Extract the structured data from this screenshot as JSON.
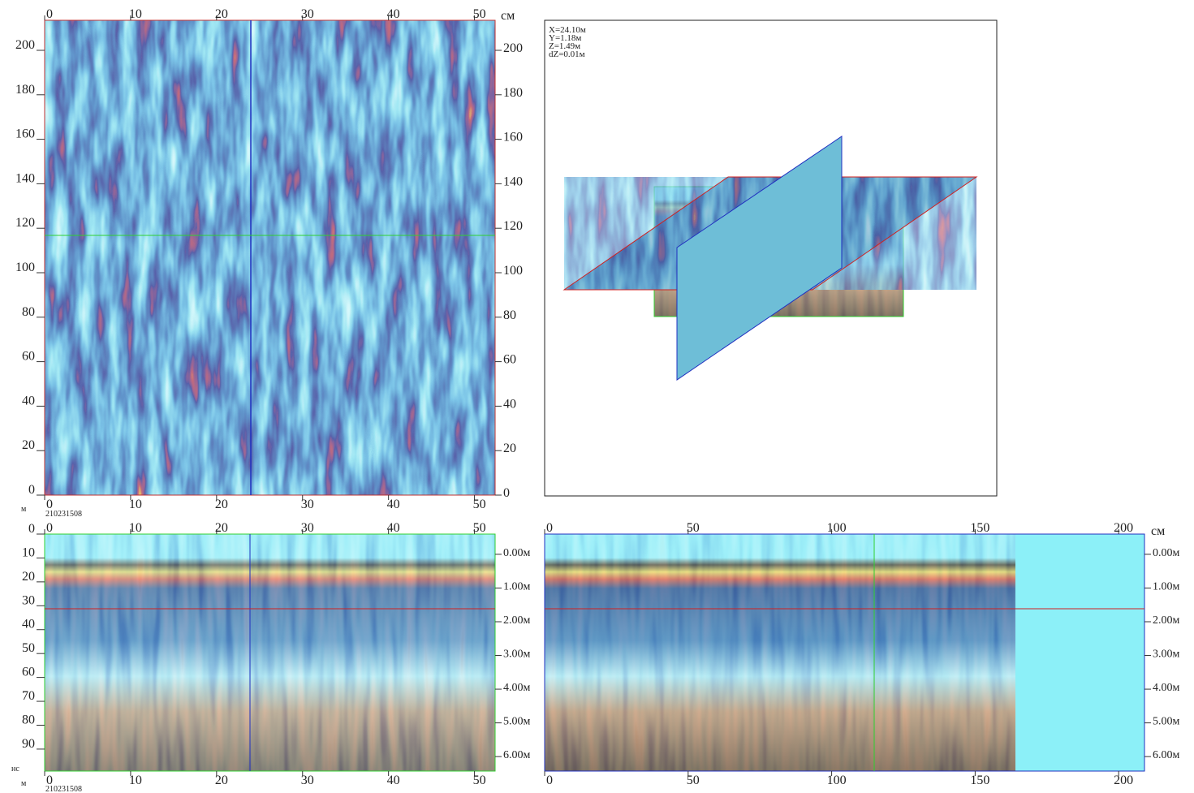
{
  "plan_view": {
    "x_unit_top": "см",
    "x_unit_bottom": "м",
    "file_id": "210231508",
    "xlim": [
      0,
      52.4
    ],
    "ylim": [
      0,
      213.5
    ],
    "xticks": [
      0,
      10,
      20,
      30,
      40,
      50
    ],
    "yticks": [
      0,
      20,
      40,
      60,
      80,
      100,
      120,
      140,
      160,
      180,
      200
    ]
  },
  "cursor_info": [
    "X=24.10м",
    "Y=1.18м",
    "Z=1.49м",
    "dZ=0.01м"
  ],
  "section_x": {
    "x_unit": "м",
    "y_unit": "нс",
    "file_id": "210231508",
    "xlim": [
      0,
      52.4
    ],
    "ylim": [
      0,
      99.2
    ],
    "depth_lim": [
      -0.6,
      6.43
    ],
    "xticks": [
      0,
      10,
      20,
      30,
      40,
      50
    ],
    "yticks": [
      0,
      10,
      20,
      30,
      40,
      50,
      60,
      70,
      80,
      90
    ],
    "depth_ticks": [
      {
        "value": 0,
        "label": "0.00м"
      },
      {
        "value": 1,
        "label": "1.00м"
      },
      {
        "value": 2,
        "label": "2.00м"
      },
      {
        "value": 3,
        "label": "3.00м"
      },
      {
        "value": 4,
        "label": "4.00м"
      },
      {
        "value": 5,
        "label": "5.00м"
      },
      {
        "value": 6,
        "label": "6.00м"
      }
    ]
  },
  "section_y": {
    "x_unit": "см",
    "xlim": [
      0,
      209
    ],
    "depth_lim": [
      -0.6,
      6.43
    ],
    "xticks": [
      0,
      50,
      100,
      150,
      200
    ],
    "depth_ticks": [
      {
        "value": 0,
        "label": "0.00м"
      },
      {
        "value": 1,
        "label": "1.00м"
      },
      {
        "value": 2,
        "label": "2.00м"
      },
      {
        "value": 3,
        "label": "3.00м"
      },
      {
        "value": 4,
        "label": "4.00м"
      },
      {
        "value": 5,
        "label": "5.00м"
      },
      {
        "value": 6,
        "label": "6.00м"
      }
    ]
  }
}
